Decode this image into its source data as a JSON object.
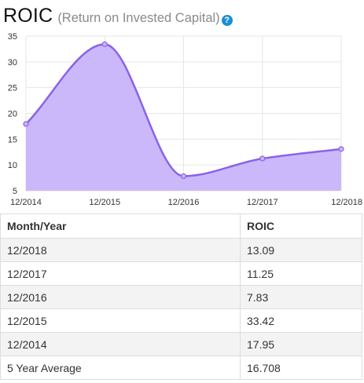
{
  "header": {
    "title": "ROIC",
    "subtitle": "(Return on Invested Capital)",
    "help_icon": "?"
  },
  "chart_data": {
    "type": "area",
    "title": "",
    "xlabel": "",
    "ylabel": "",
    "x": [
      "12/2014",
      "12/2015",
      "12/2016",
      "12/2017",
      "12/2018"
    ],
    "series": [
      {
        "values": [
          17.95,
          33.42,
          7.83,
          11.25,
          13.09
        ]
      }
    ],
    "ylim": [
      5,
      35
    ],
    "yticks": [
      5,
      10,
      15,
      20,
      25,
      30,
      35
    ],
    "grid": true,
    "colors": {
      "line": "#8a63e8",
      "fill": "#c8b4fb"
    }
  },
  "table": {
    "headers": [
      "Month/Year",
      "ROIC"
    ],
    "rows": [
      [
        "12/2018",
        "13.09"
      ],
      [
        "12/2017",
        "11.25"
      ],
      [
        "12/2016",
        "7.83"
      ],
      [
        "12/2015",
        "33.42"
      ],
      [
        "12/2014",
        "17.95"
      ],
      [
        "5 Year Average",
        "16.708"
      ]
    ]
  }
}
